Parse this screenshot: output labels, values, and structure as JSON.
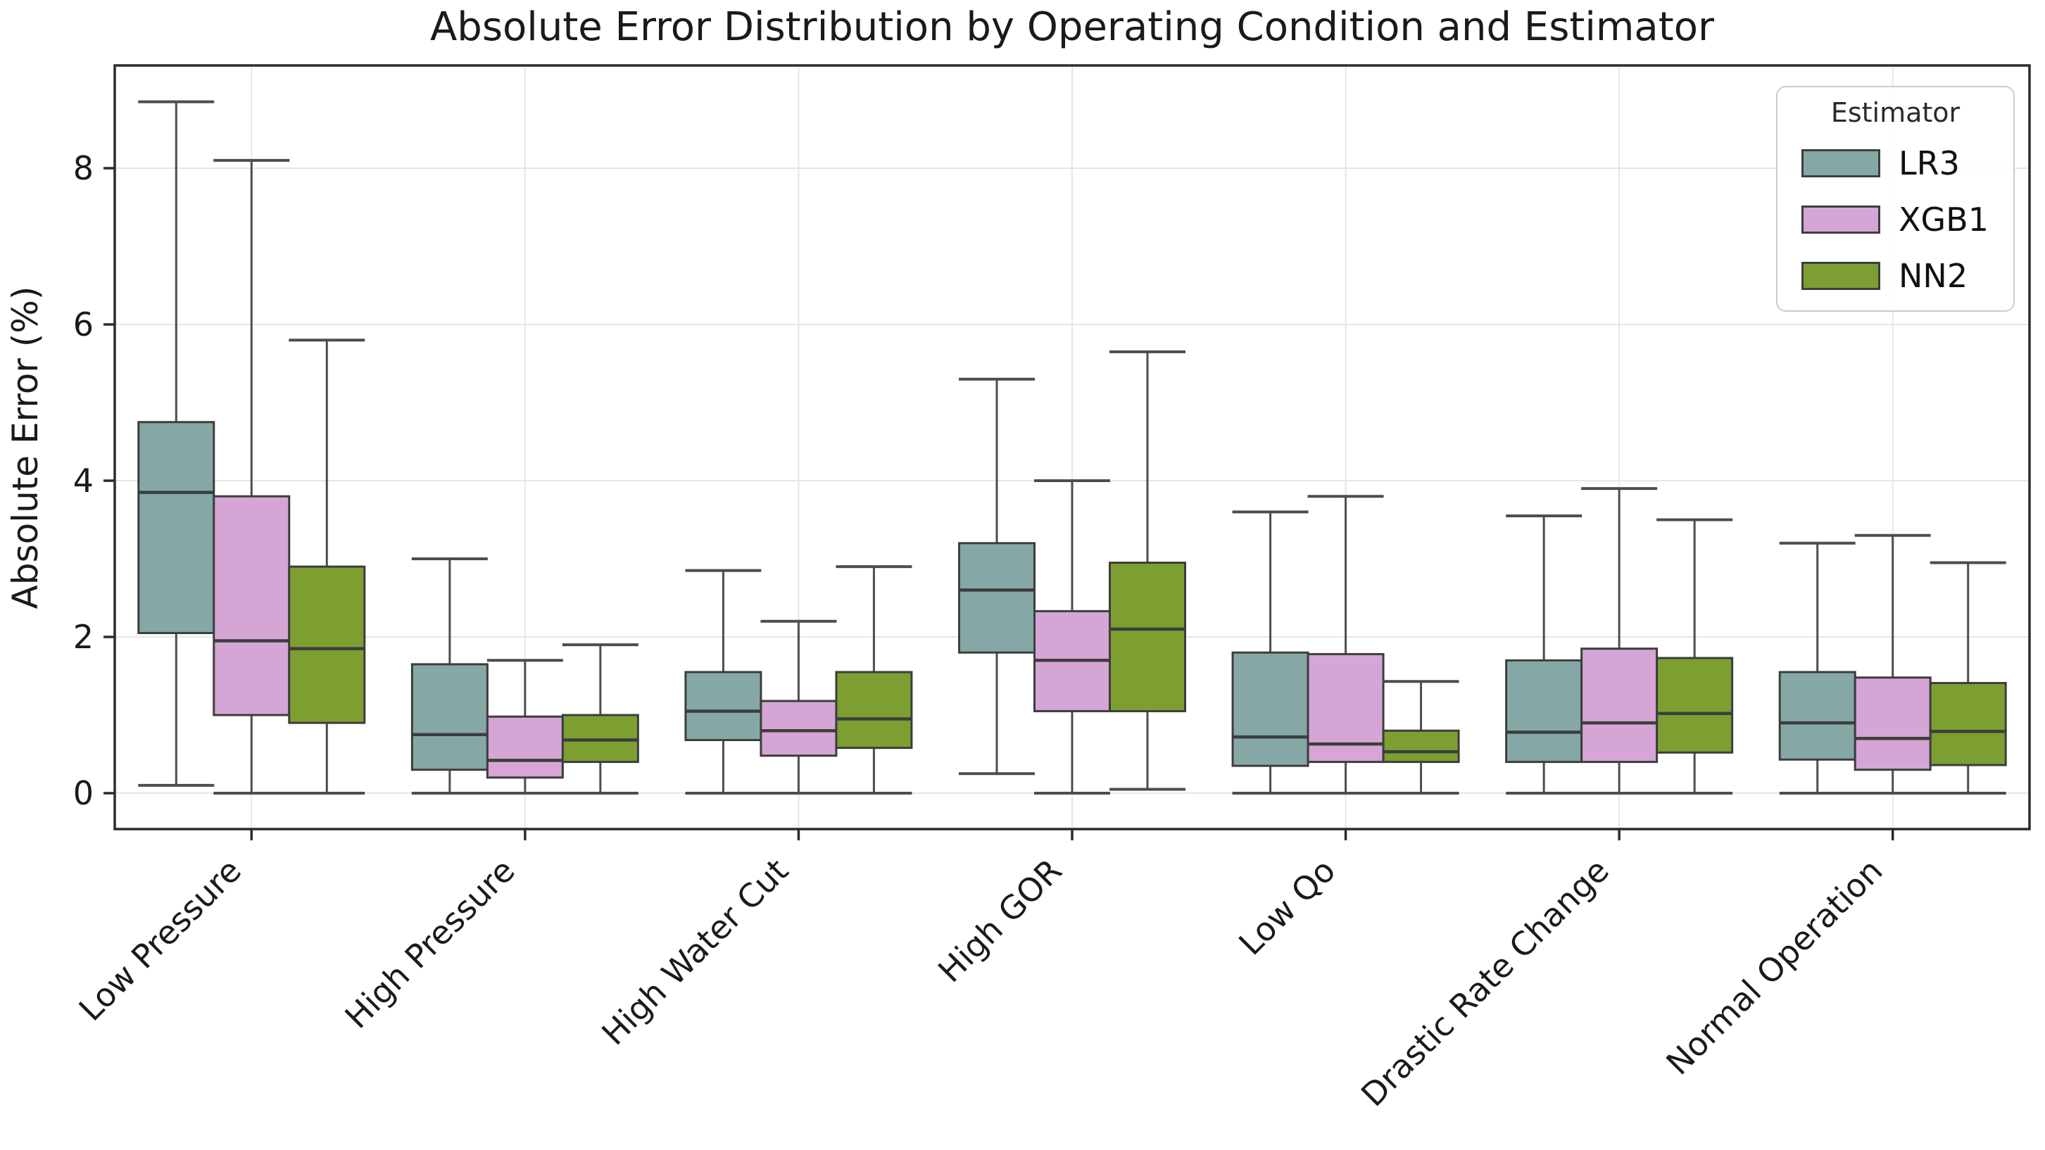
{
  "chart_data": {
    "type": "boxplot",
    "title": "Absolute Error Distribution by Operating Condition and Estimator",
    "ylabel": "Absolute Error (%)",
    "xlabel": "",
    "legend_title": "Estimator",
    "legend_position": "upper right",
    "grid": true,
    "yticks": [
      0,
      2,
      4,
      6,
      8
    ],
    "ylim": [
      -0.46,
      9.32
    ],
    "categories": [
      "Low Pressure",
      "High Pressure",
      "High Water Cut",
      "High GOR",
      "Low Qo",
      "Drastic Rate Change",
      "Normal Operation"
    ],
    "series": [
      {
        "name": "LR3",
        "color": "#85a8a6",
        "boxes": [
          {
            "whislo": 0.1,
            "q1": 2.05,
            "med": 3.85,
            "q3": 4.75,
            "whishi": 8.85
          },
          {
            "whislo": 0.0,
            "q1": 0.3,
            "med": 0.75,
            "q3": 1.65,
            "whishi": 3.0
          },
          {
            "whislo": 0.0,
            "q1": 0.68,
            "med": 1.05,
            "q3": 1.55,
            "whishi": 2.85
          },
          {
            "whislo": 0.25,
            "q1": 1.8,
            "med": 2.6,
            "q3": 3.2,
            "whishi": 5.3
          },
          {
            "whislo": 0.0,
            "q1": 0.35,
            "med": 0.72,
            "q3": 1.8,
            "whishi": 3.6
          },
          {
            "whislo": 0.0,
            "q1": 0.4,
            "med": 0.78,
            "q3": 1.7,
            "whishi": 3.55
          },
          {
            "whislo": 0.0,
            "q1": 0.43,
            "med": 0.9,
            "q3": 1.55,
            "whishi": 3.2
          }
        ]
      },
      {
        "name": "XGB1",
        "color": "#d5a6d5",
        "boxes": [
          {
            "whislo": 0.0,
            "q1": 1.0,
            "med": 1.95,
            "q3": 3.8,
            "whishi": 8.1
          },
          {
            "whislo": 0.0,
            "q1": 0.2,
            "med": 0.42,
            "q3": 0.98,
            "whishi": 1.7
          },
          {
            "whislo": 0.0,
            "q1": 0.48,
            "med": 0.8,
            "q3": 1.18,
            "whishi": 2.2
          },
          {
            "whislo": 0.0,
            "q1": 1.05,
            "med": 1.7,
            "q3": 2.33,
            "whishi": 4.0
          },
          {
            "whislo": 0.0,
            "q1": 0.4,
            "med": 0.63,
            "q3": 1.78,
            "whishi": 3.8
          },
          {
            "whislo": 0.0,
            "q1": 0.4,
            "med": 0.9,
            "q3": 1.85,
            "whishi": 3.9
          },
          {
            "whislo": 0.0,
            "q1": 0.3,
            "med": 0.7,
            "q3": 1.48,
            "whishi": 3.3
          }
        ]
      },
      {
        "name": "NN2",
        "color": "#7d9f32",
        "boxes": [
          {
            "whislo": 0.0,
            "q1": 0.9,
            "med": 1.85,
            "q3": 2.9,
            "whishi": 5.8
          },
          {
            "whislo": 0.0,
            "q1": 0.4,
            "med": 0.68,
            "q3": 1.0,
            "whishi": 1.9
          },
          {
            "whislo": 0.0,
            "q1": 0.58,
            "med": 0.95,
            "q3": 1.55,
            "whishi": 2.9
          },
          {
            "whislo": 0.05,
            "q1": 1.05,
            "med": 2.1,
            "q3": 2.95,
            "whishi": 5.65
          },
          {
            "whislo": 0.0,
            "q1": 0.4,
            "med": 0.53,
            "q3": 0.8,
            "whishi": 1.43
          },
          {
            "whislo": 0.0,
            "q1": 0.52,
            "med": 1.02,
            "q3": 1.73,
            "whishi": 3.5
          },
          {
            "whislo": 0.0,
            "q1": 0.36,
            "med": 0.79,
            "q3": 1.41,
            "whishi": 2.95
          }
        ]
      }
    ],
    "style": {
      "box_edge_color": "#3d3d3d",
      "whisker_color": "#4d4d4d",
      "grid_color": "#e6e6e6",
      "spine_color": "#2b2b2b",
      "tick_label_color": "#1a1a1a"
    }
  }
}
